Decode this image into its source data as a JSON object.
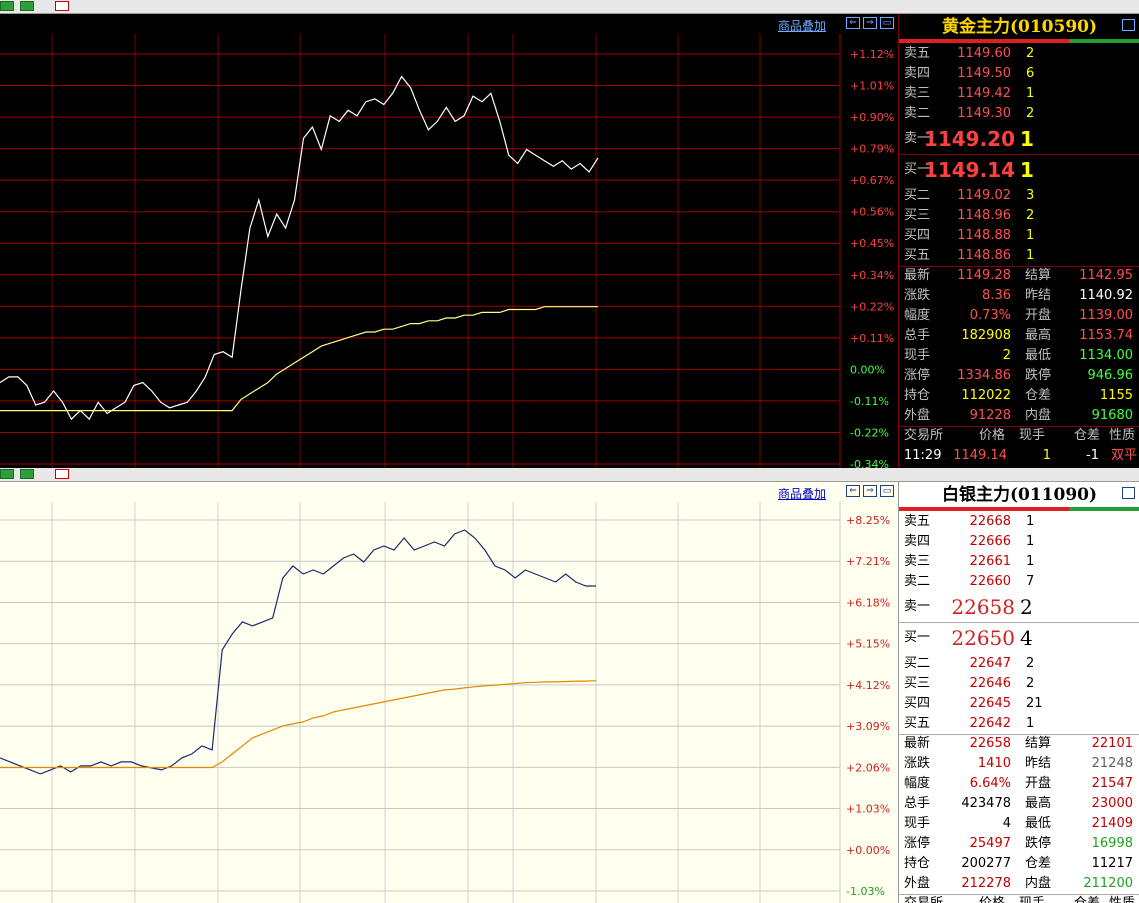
{
  "gold": {
    "title": "黄金主力(010590)",
    "overlay_label": "商品叠加",
    "axis_ticks": [
      "+1.12%",
      "+1.01%",
      "+0.90%",
      "+0.79%",
      "+0.67%",
      "+0.56%",
      "+0.45%",
      "+0.34%",
      "+0.22%",
      "+0.11%",
      "0.00%",
      "-0.11%",
      "-0.22%",
      "-0.34%"
    ],
    "asks": [
      {
        "label": "卖五",
        "price": "1149.60",
        "vol": "2"
      },
      {
        "label": "卖四",
        "price": "1149.50",
        "vol": "6"
      },
      {
        "label": "卖三",
        "price": "1149.42",
        "vol": "1"
      },
      {
        "label": "卖二",
        "price": "1149.30",
        "vol": "2"
      },
      {
        "label": "卖一",
        "price": "1149.20",
        "vol": "1"
      }
    ],
    "bids": [
      {
        "label": "买一",
        "price": "1149.14",
        "vol": "1"
      },
      {
        "label": "买二",
        "price": "1149.02",
        "vol": "3"
      },
      {
        "label": "买三",
        "price": "1148.96",
        "vol": "2"
      },
      {
        "label": "买四",
        "price": "1148.88",
        "vol": "1"
      },
      {
        "label": "买五",
        "price": "1148.86",
        "vol": "1"
      }
    ],
    "stats": [
      {
        "l1": "最新",
        "v1": "1149.28",
        "l2": "结算",
        "v2": "1142.95"
      },
      {
        "l1": "涨跌",
        "v1": "8.36",
        "l2": "昨结",
        "v2": "1140.92"
      },
      {
        "l1": "幅度",
        "v1": "0.73%",
        "l2": "开盘",
        "v2": "1139.00"
      },
      {
        "l1": "总手",
        "v1": "182908",
        "l2": "最高",
        "v2": "1153.74"
      },
      {
        "l1": "现手",
        "v1": "2",
        "l2": "最低",
        "v2": "1134.00"
      },
      {
        "l1": "涨停",
        "v1": "1334.86",
        "l2": "跌停",
        "v2": "946.96"
      },
      {
        "l1": "持仓",
        "v1": "112022",
        "l2": "仓差",
        "v2": "1155"
      },
      {
        "l1": "外盘",
        "v1": "91228",
        "l2": "内盘",
        "v2": "91680"
      }
    ],
    "trade_header": [
      "交易所",
      "价格",
      "现手",
      "仓差",
      "性质"
    ],
    "trade_row": [
      "11:29",
      "1149.14",
      "1",
      "-1",
      "双平"
    ]
  },
  "silver": {
    "title": "白银主力(011090)",
    "overlay_label": "商品叠加",
    "axis_ticks": [
      "+8.25%",
      "+7.21%",
      "+6.18%",
      "+5.15%",
      "+4.12%",
      "+3.09%",
      "+2.06%",
      "+1.03%",
      "+0.00%",
      "-1.03%"
    ],
    "asks": [
      {
        "label": "卖五",
        "price": "22668",
        "vol": "1"
      },
      {
        "label": "卖四",
        "price": "22666",
        "vol": "1"
      },
      {
        "label": "卖三",
        "price": "22661",
        "vol": "1"
      },
      {
        "label": "卖二",
        "price": "22660",
        "vol": "7"
      },
      {
        "label": "卖一",
        "price": "22658",
        "vol": "2"
      }
    ],
    "bids": [
      {
        "label": "买一",
        "price": "22650",
        "vol": "4"
      },
      {
        "label": "买二",
        "price": "22647",
        "vol": "2"
      },
      {
        "label": "买三",
        "price": "22646",
        "vol": "2"
      },
      {
        "label": "买四",
        "price": "22645",
        "vol": "21"
      },
      {
        "label": "买五",
        "price": "22642",
        "vol": "1"
      }
    ],
    "stats": [
      {
        "l1": "最新",
        "v1": "22658",
        "l2": "结算",
        "v2": "22101"
      },
      {
        "l1": "涨跌",
        "v1": "1410",
        "l2": "昨结",
        "v2": "21248"
      },
      {
        "l1": "幅度",
        "v1": "6.64%",
        "l2": "开盘",
        "v2": "21547"
      },
      {
        "l1": "总手",
        "v1": "423478",
        "l2": "最高",
        "v2": "23000"
      },
      {
        "l1": "现手",
        "v1": "4",
        "l2": "最低",
        "v2": "21409"
      },
      {
        "l1": "涨停",
        "v1": "25497",
        "l2": "跌停",
        "v2": "16998"
      },
      {
        "l1": "持仓",
        "v1": "200277",
        "l2": "仓差",
        "v2": "11217"
      },
      {
        "l1": "外盘",
        "v1": "212278",
        "l2": "内盘",
        "v2": "211200"
      }
    ],
    "trade_header": [
      "交易所",
      "价格",
      "现手",
      "仓差",
      "性质"
    ]
  },
  "chart_data": [
    {
      "type": "line",
      "ytick_labels": [
        "+1.12%",
        "+1.01%",
        "+0.90%",
        "+0.79%",
        "+0.67%",
        "+0.56%",
        "+0.45%",
        "+0.34%",
        "+0.22%",
        "+0.11%",
        "0.00%",
        "-0.11%",
        "-0.22%",
        "-0.34%"
      ],
      "ylim": [
        -0.34,
        1.12
      ],
      "grid": true,
      "series": [
        {
          "values": [
            -0.05,
            -0.03,
            -0.03,
            -0.06,
            -0.13,
            -0.12,
            -0.08,
            -0.12,
            -0.18,
            -0.15,
            -0.18,
            -0.12,
            -0.16,
            -0.14,
            -0.12,
            -0.06,
            -0.05,
            -0.08,
            -0.12,
            -0.14,
            -0.13,
            -0.12,
            -0.08,
            -0.03,
            0.05,
            0.06,
            0.04,
            0.28,
            0.5,
            0.6,
            0.47,
            0.55,
            0.5,
            0.6,
            0.82,
            0.86,
            0.78,
            0.9,
            0.88,
            0.92,
            0.9,
            0.95,
            0.96,
            0.94,
            0.98,
            1.04,
            1.0,
            0.92,
            0.85,
            0.88,
            0.93,
            0.88,
            0.9,
            0.97,
            0.95,
            0.98,
            0.88,
            0.76,
            0.73,
            0.78,
            0.76,
            0.74,
            0.72,
            0.74,
            0.71,
            0.73,
            0.7,
            0.75
          ]
        },
        {
          "values": [
            -0.15,
            -0.15,
            -0.15,
            -0.15,
            -0.15,
            -0.15,
            -0.15,
            -0.15,
            -0.15,
            -0.15,
            -0.15,
            -0.15,
            -0.15,
            -0.15,
            -0.15,
            -0.15,
            -0.15,
            -0.15,
            -0.15,
            -0.15,
            -0.15,
            -0.15,
            -0.15,
            -0.15,
            -0.15,
            -0.15,
            -0.15,
            -0.11,
            -0.09,
            -0.07,
            -0.05,
            -0.02,
            0.0,
            0.02,
            0.04,
            0.06,
            0.08,
            0.09,
            0.1,
            0.11,
            0.12,
            0.13,
            0.13,
            0.14,
            0.14,
            0.15,
            0.16,
            0.16,
            0.17,
            0.17,
            0.18,
            0.18,
            0.19,
            0.19,
            0.2,
            0.2,
            0.2,
            0.21,
            0.21,
            0.21,
            0.21,
            0.22,
            0.22,
            0.22,
            0.22,
            0.22,
            0.22,
            0.22
          ]
        }
      ]
    },
    {
      "type": "line",
      "ytick_labels": [
        "+8.25%",
        "+7.21%",
        "+6.18%",
        "+5.15%",
        "+4.12%",
        "+3.09%",
        "+2.06%",
        "+1.03%",
        "+0.00%",
        "-1.03%"
      ],
      "ylim": [
        -1.03,
        8.25
      ],
      "grid": true,
      "series": [
        {
          "values": [
            2.3,
            2.2,
            2.1,
            2.0,
            1.9,
            2.0,
            2.1,
            1.95,
            2.1,
            2.1,
            2.2,
            2.1,
            2.2,
            2.2,
            2.1,
            2.05,
            2.0,
            2.1,
            2.3,
            2.4,
            2.6,
            2.5,
            5.0,
            5.4,
            5.7,
            5.6,
            5.7,
            5.8,
            6.8,
            7.1,
            6.9,
            7.0,
            6.9,
            7.1,
            7.3,
            7.4,
            7.2,
            7.5,
            7.6,
            7.5,
            7.8,
            7.5,
            7.6,
            7.7,
            7.6,
            7.9,
            8.0,
            7.8,
            7.5,
            7.1,
            7.0,
            6.8,
            7.0,
            6.9,
            6.8,
            6.7,
            6.9,
            6.7,
            6.6,
            6.6
          ]
        },
        {
          "values": [
            2.06,
            2.06,
            2.06,
            2.06,
            2.06,
            2.06,
            2.06,
            2.06,
            2.06,
            2.06,
            2.06,
            2.06,
            2.06,
            2.06,
            2.06,
            2.06,
            2.06,
            2.06,
            2.06,
            2.06,
            2.06,
            2.06,
            2.2,
            2.4,
            2.6,
            2.8,
            2.9,
            3.0,
            3.1,
            3.15,
            3.2,
            3.3,
            3.35,
            3.45,
            3.5,
            3.55,
            3.6,
            3.65,
            3.7,
            3.75,
            3.8,
            3.85,
            3.9,
            3.95,
            4.0,
            4.02,
            4.05,
            4.08,
            4.1,
            4.12,
            4.14,
            4.16,
            4.18,
            4.19,
            4.2,
            4.2,
            4.21,
            4.22,
            4.22,
            4.23
          ]
        }
      ]
    }
  ]
}
